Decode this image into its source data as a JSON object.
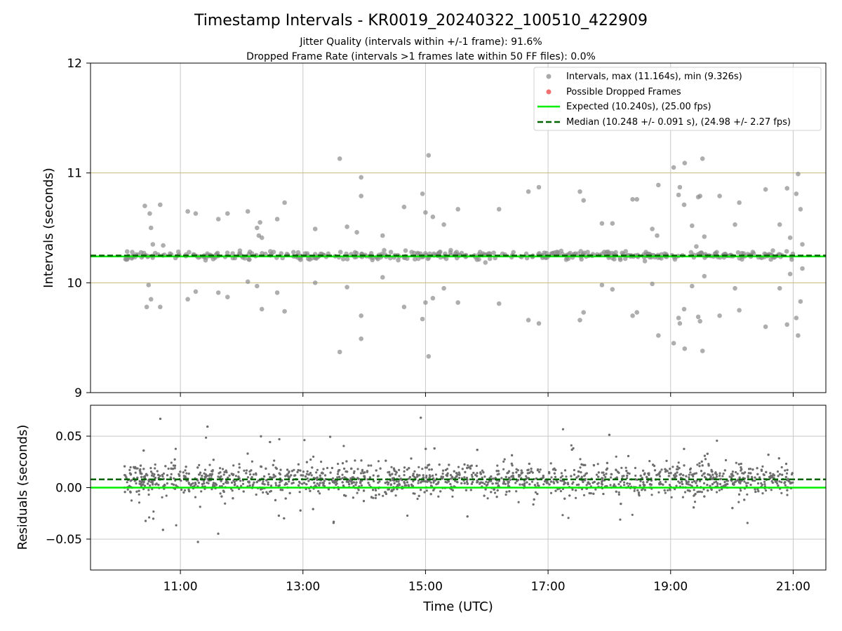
{
  "figure": {
    "title": "Timestamp Intervals - KR0019_20240322_100510_422909",
    "subtitle_1": "Jitter Quality (intervals within +/-1 frame): 91.6%",
    "subtitle_2": "Dropped Frame Rate (intervals >1 frames late within 50 FF files): 0.0%",
    "xlabel": "Time (UTC)"
  },
  "colors": {
    "points": "#8c8c8c",
    "dropped": "#f04040",
    "expected": "#00ee00",
    "median": "#006400",
    "band": "#c8b978",
    "grid": "#c8c8c8",
    "residual_points": "#6e6e6e"
  },
  "chart_data": [
    {
      "type": "scatter",
      "name": "intervals",
      "ylabel": "Intervals (seconds)",
      "ylim": [
        9,
        12
      ],
      "xlim_hours": [
        9.5333,
        21.5333
      ],
      "yticks": [
        9,
        10,
        11,
        12
      ],
      "grid": "vertical",
      "legend_position": "top-right",
      "expected": 10.24,
      "median": 10.248,
      "frame_band": [
        10.0,
        11.0
      ],
      "legend": [
        "Intervals, max (11.164s), min (9.326s)",
        "Possible Dropped Frames",
        "Expected (10.240s), (25.00 fps)",
        "Median (10.248 +/- 0.091 s), (24.98 +/- 2.27 fps)"
      ],
      "series": [
        {
          "name": "Intervals, max (11.164s), min (9.326s)",
          "x_range": [
            "10:05",
            "21:00"
          ],
          "count": 420,
          "center": 10.248
        },
        {
          "name": "Possible Dropped Frames",
          "values": []
        }
      ],
      "outliers": [
        [
          10.42,
          10.7
        ],
        [
          10.5,
          10.63
        ],
        [
          10.52,
          10.5
        ],
        [
          10.55,
          10.35
        ],
        [
          10.48,
          9.98
        ],
        [
          10.52,
          9.85
        ],
        [
          10.45,
          9.78
        ],
        [
          10.67,
          10.71
        ],
        [
          10.67,
          9.78
        ],
        [
          10.72,
          10.34
        ],
        [
          11.12,
          10.65
        ],
        [
          11.25,
          10.63
        ],
        [
          11.12,
          9.85
        ],
        [
          11.25,
          9.92
        ],
        [
          11.62,
          10.58
        ],
        [
          11.77,
          10.63
        ],
        [
          11.62,
          9.91
        ],
        [
          11.77,
          9.87
        ],
        [
          12.1,
          10.65
        ],
        [
          12.1,
          10.01
        ],
        [
          12.25,
          10.5
        ],
        [
          12.3,
          10.55
        ],
        [
          12.28,
          10.43
        ],
        [
          12.33,
          10.41
        ],
        [
          12.25,
          9.97
        ],
        [
          12.33,
          9.76
        ],
        [
          12.58,
          10.58
        ],
        [
          12.7,
          10.73
        ],
        [
          12.58,
          9.91
        ],
        [
          12.7,
          9.74
        ],
        [
          13.2,
          10.49
        ],
        [
          13.2,
          10.0
        ],
        [
          13.6,
          11.13
        ],
        [
          13.6,
          9.37
        ],
        [
          13.72,
          10.51
        ],
        [
          13.72,
          9.96
        ],
        [
          13.88,
          10.46
        ],
        [
          13.95,
          10.96
        ],
        [
          13.95,
          10.79
        ],
        [
          13.95,
          9.7
        ],
        [
          13.95,
          9.49
        ],
        [
          14.3,
          10.43
        ],
        [
          14.3,
          10.05
        ],
        [
          14.65,
          10.69
        ],
        [
          14.65,
          9.78
        ],
        [
          14.95,
          10.81
        ],
        [
          15.0,
          10.64
        ],
        [
          14.95,
          9.67
        ],
        [
          15.0,
          9.82
        ],
        [
          15.05,
          11.16
        ],
        [
          15.05,
          9.33
        ],
        [
          15.12,
          10.6
        ],
        [
          15.12,
          9.86
        ],
        [
          15.3,
          10.53
        ],
        [
          15.3,
          9.95
        ],
        [
          15.53,
          10.67
        ],
        [
          15.53,
          9.82
        ],
        [
          16.2,
          10.67
        ],
        [
          16.2,
          9.81
        ],
        [
          16.68,
          10.83
        ],
        [
          16.85,
          10.87
        ],
        [
          16.68,
          9.66
        ],
        [
          16.85,
          9.63
        ],
        [
          17.52,
          10.83
        ],
        [
          17.58,
          10.75
        ],
        [
          17.52,
          9.66
        ],
        [
          17.58,
          9.73
        ],
        [
          17.88,
          10.54
        ],
        [
          18.05,
          10.54
        ],
        [
          17.88,
          9.98
        ],
        [
          18.05,
          9.94
        ],
        [
          18.38,
          10.76
        ],
        [
          18.45,
          10.76
        ],
        [
          18.38,
          9.7
        ],
        [
          18.45,
          9.73
        ],
        [
          18.7,
          10.49
        ],
        [
          18.8,
          10.89
        ],
        [
          18.78,
          10.43
        ],
        [
          18.7,
          9.99
        ],
        [
          18.8,
          9.52
        ],
        [
          19.05,
          11.05
        ],
        [
          19.15,
          10.87
        ],
        [
          19.13,
          10.8
        ],
        [
          19.23,
          11.09
        ],
        [
          19.22,
          10.71
        ],
        [
          19.05,
          9.45
        ],
        [
          19.13,
          9.68
        ],
        [
          19.23,
          9.4
        ],
        [
          19.15,
          9.63
        ],
        [
          19.22,
          9.76
        ],
        [
          19.35,
          10.52
        ],
        [
          19.42,
          10.33
        ],
        [
          19.45,
          10.78
        ],
        [
          19.48,
          10.79
        ],
        [
          19.55,
          10.42
        ],
        [
          19.35,
          9.97
        ],
        [
          19.45,
          9.69
        ],
        [
          19.48,
          9.65
        ],
        [
          19.55,
          10.06
        ],
        [
          19.52,
          11.13
        ],
        [
          19.52,
          9.38
        ],
        [
          19.8,
          10.79
        ],
        [
          19.8,
          9.7
        ],
        [
          20.05,
          10.53
        ],
        [
          20.05,
          9.95
        ],
        [
          20.12,
          10.73
        ],
        [
          20.12,
          9.75
        ],
        [
          20.55,
          10.85
        ],
        [
          20.55,
          9.6
        ],
        [
          20.78,
          10.53
        ],
        [
          20.78,
          9.95
        ],
        [
          20.9,
          10.86
        ],
        [
          20.9,
          9.62
        ],
        [
          20.95,
          10.41
        ],
        [
          20.95,
          10.08
        ],
        [
          21.05,
          10.81
        ],
        [
          21.08,
          10.99
        ],
        [
          21.05,
          9.68
        ],
        [
          21.08,
          9.52
        ],
        [
          21.12,
          10.67
        ],
        [
          21.12,
          9.83
        ],
        [
          21.15,
          10.35
        ],
        [
          21.15,
          10.13
        ]
      ]
    },
    {
      "type": "scatter",
      "name": "residuals",
      "ylabel": "Residuals (seconds)",
      "ylim": [
        -0.08,
        0.08
      ],
      "yticks": [
        -0.05,
        0.0,
        0.05
      ],
      "yticklabels": [
        "−0.05",
        "0.00",
        "0.05"
      ],
      "xticks": [
        "11:00",
        "13:00",
        "15:00",
        "17:00",
        "19:00",
        "21:00"
      ],
      "grid": "both",
      "expected": 0.0,
      "median": 0.008,
      "series": [
        {
          "name": "residuals",
          "x_range": [
            "10:05",
            "21:00"
          ],
          "count": 2400,
          "center": 0.008
        }
      ]
    }
  ]
}
